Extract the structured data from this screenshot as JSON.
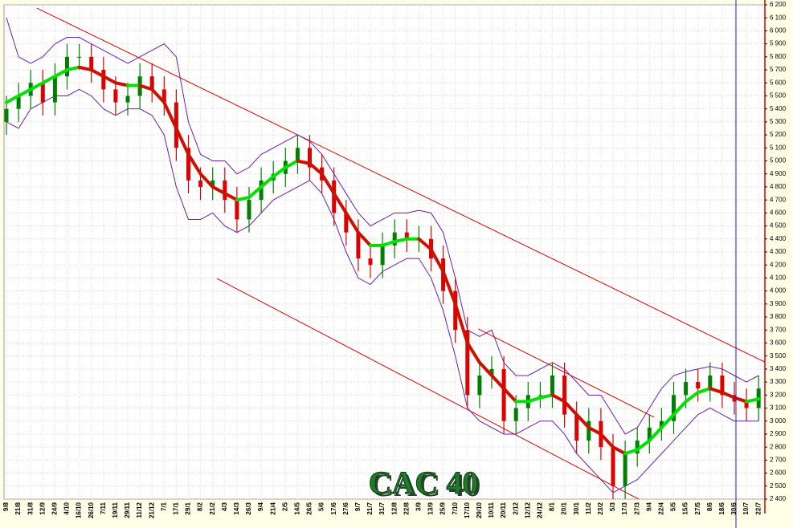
{
  "chart_data": {
    "type": "candlestick",
    "title": "CAC 40",
    "categories": [
      "9/8",
      "21/8",
      "31/8",
      "12/9",
      "24/9",
      "4/10",
      "16/10",
      "26/10",
      "7/11",
      "19/11",
      "29/11",
      "11/12",
      "21/12",
      "7/1",
      "17/1",
      "29/1",
      "8/2",
      "21/2",
      "4/3",
      "14/3",
      "26/3",
      "9/4",
      "21/4",
      "2/5",
      "14/5",
      "26/5",
      "5/6",
      "17/6",
      "27/6",
      "9/7",
      "21/7",
      "31/7",
      "12/8",
      "22/8",
      "3/9",
      "13/9",
      "25/9",
      "7/10",
      "17/10",
      "29/10",
      "10/11",
      "20/11",
      "2/12",
      "12/12",
      "24/12",
      "8/1",
      "20/1",
      "30/1",
      "11/2",
      "23/2",
      "5/3",
      "17/3",
      "27/3",
      "9/4",
      "22/4",
      "5/5",
      "15/5",
      "27/5",
      "8/6",
      "18/6",
      "30/6",
      "10/7",
      "22/7"
    ],
    "open": [
      5300,
      5400,
      5500,
      5600,
      5450,
      5650,
      5800,
      5800,
      5700,
      5550,
      5450,
      5500,
      5650,
      5550,
      5450,
      5100,
      4850,
      4800,
      4850,
      4700,
      4550,
      4700,
      4850,
      4900,
      5000,
      5100,
      4950,
      4850,
      4600,
      4450,
      4250,
      4200,
      4350,
      4450,
      4400,
      4400,
      4250,
      4000,
      3700,
      3200,
      3350,
      3400,
      3000,
      3100,
      3200,
      3200,
      3350,
      3050,
      2850,
      3000,
      2800,
      2500,
      2750,
      2850,
      2950,
      3000,
      3200,
      3300,
      3250,
      3350,
      3200,
      3150,
      3100
    ],
    "high": [
      5500,
      5600,
      5700,
      5700,
      5750,
      5900,
      5900,
      5900,
      5800,
      5650,
      5600,
      5750,
      5750,
      5650,
      5550,
      5200,
      4950,
      4950,
      4950,
      4800,
      4800,
      4950,
      5000,
      5100,
      5200,
      5200,
      5050,
      4950,
      4700,
      4550,
      4350,
      4450,
      4550,
      4550,
      4500,
      4500,
      4350,
      4100,
      3800,
      3450,
      3500,
      3500,
      3200,
      3300,
      3300,
      3450,
      3450,
      3150,
      3100,
      3100,
      2900,
      2850,
      2950,
      3050,
      3100,
      3300,
      3400,
      3400,
      3450,
      3450,
      3300,
      3250,
      3350
    ],
    "low": [
      5200,
      5300,
      5400,
      5350,
      5350,
      5550,
      5700,
      5600,
      5450,
      5350,
      5350,
      5400,
      5450,
      5350,
      5000,
      4750,
      4700,
      4700,
      4600,
      4450,
      4450,
      4600,
      4750,
      4800,
      4900,
      4850,
      4750,
      4500,
      4350,
      4150,
      4100,
      4100,
      4250,
      4300,
      4300,
      4150,
      3900,
      3600,
      3100,
      3100,
      3250,
      2900,
      2900,
      3000,
      3100,
      3100,
      2950,
      2750,
      2750,
      2700,
      2400,
      2400,
      2650,
      2750,
      2850,
      2900,
      3100,
      3150,
      3150,
      3100,
      3050,
      3000,
      3000
    ],
    "close": [
      5400,
      5500,
      5600,
      5450,
      5650,
      5800,
      5800,
      5700,
      5550,
      5450,
      5500,
      5650,
      5550,
      5450,
      5100,
      4850,
      4800,
      4850,
      4700,
      4550,
      4700,
      4850,
      4900,
      5000,
      5100,
      4950,
      4850,
      4600,
      4450,
      4250,
      4200,
      4350,
      4450,
      4400,
      4400,
      4250,
      4000,
      3700,
      3200,
      3350,
      3400,
      3000,
      3100,
      3200,
      3200,
      3350,
      3050,
      2850,
      3000,
      2800,
      2500,
      2750,
      2850,
      2950,
      3000,
      3200,
      3300,
      3250,
      3350,
      3200,
      3150,
      3100,
      3250
    ],
    "moving_average": [
      5450,
      5500,
      5550,
      5600,
      5650,
      5700,
      5720,
      5700,
      5650,
      5600,
      5580,
      5580,
      5550,
      5450,
      5250,
      5050,
      4900,
      4800,
      4750,
      4700,
      4720,
      4800,
      4880,
      4950,
      5000,
      4980,
      4900,
      4750,
      4600,
      4450,
      4350,
      4350,
      4380,
      4400,
      4400,
      4320,
      4150,
      3900,
      3600,
      3450,
      3350,
      3250,
      3150,
      3150,
      3180,
      3200,
      3150,
      3050,
      2950,
      2900,
      2800,
      2750,
      2780,
      2850,
      2950,
      3050,
      3150,
      3220,
      3250,
      3220,
      3180,
      3150,
      3170
    ],
    "band_upper": [
      6100,
      5800,
      5750,
      5800,
      5900,
      5950,
      5950,
      5900,
      5850,
      5800,
      5750,
      5800,
      5850,
      5900,
      5800,
      5300,
      5050,
      5000,
      5000,
      4900,
      4950,
      5050,
      5100,
      5150,
      5200,
      5150,
      5050,
      4900,
      4750,
      4600,
      4500,
      4550,
      4600,
      4600,
      4620,
      4600,
      4450,
      4100,
      3700,
      3650,
      3700,
      3450,
      3350,
      3350,
      3400,
      3450,
      3400,
      3300,
      3200,
      3200,
      3050,
      2900,
      2950,
      3100,
      3250,
      3350,
      3380,
      3400,
      3420,
      3400,
      3350,
      3300,
      3350
    ],
    "band_lower": [
      5300,
      5250,
      5400,
      5450,
      5500,
      5500,
      5550,
      5500,
      5400,
      5350,
      5400,
      5400,
      5350,
      5200,
      4800,
      4550,
      4550,
      4600,
      4500,
      4450,
      4500,
      4600,
      4700,
      4750,
      4800,
      4850,
      4750,
      4550,
      4300,
      4100,
      4050,
      4150,
      4200,
      4250,
      4250,
      4100,
      3850,
      3500,
      3100,
      3000,
      2950,
      2900,
      2900,
      2950,
      3000,
      3000,
      2900,
      2750,
      2650,
      2550,
      2450,
      2500,
      2550,
      2650,
      2750,
      2850,
      2950,
      3050,
      3100,
      3050,
      3000,
      3000,
      3000
    ],
    "trendlines": [
      {
        "start": [
          2.5,
          6175
        ],
        "end": [
          64.8,
          3350
        ]
      },
      {
        "start": [
          17.35,
          4096
        ],
        "end": [
          52.5,
          2381
        ]
      },
      {
        "start": [
          38.9,
          3708
        ],
        "end": [
          53.4,
          3029
        ]
      }
    ],
    "up_color": "#008000",
    "down_color": "#e00000",
    "band_color": "#6a1fa8",
    "trend_color": "#e00000",
    "ma_up_color": "#00e000",
    "ma_down_color": "#cc1100",
    "ylim": [
      2400,
      6200
    ],
    "y_axis_side": "right",
    "grid": true,
    "yticks": [
      {
        "value": 2400,
        "label": "2 400"
      },
      {
        "value": 2500,
        "label": "2 500"
      },
      {
        "value": 2600,
        "label": "2 600"
      },
      {
        "value": 2700,
        "label": "2 700"
      },
      {
        "value": 2800,
        "label": "2 800"
      },
      {
        "value": 2900,
        "label": "2 900"
      },
      {
        "value": 3000,
        "label": "3 000"
      },
      {
        "value": 3100,
        "label": "3 100"
      },
      {
        "value": 3200,
        "label": "3 200"
      },
      {
        "value": 3300,
        "label": "3 300"
      },
      {
        "value": 3400,
        "label": "3 400"
      },
      {
        "value": 3500,
        "label": "3 500"
      },
      {
        "value": 3600,
        "label": "3 600"
      },
      {
        "value": 3700,
        "label": "3 700"
      },
      {
        "value": 3800,
        "label": "3 800"
      },
      {
        "value": 3900,
        "label": "3 900"
      },
      {
        "value": 4000,
        "label": "4 000"
      },
      {
        "value": 4100,
        "label": "4 100"
      },
      {
        "value": 4200,
        "label": "4 200"
      },
      {
        "value": 4300,
        "label": "4 300"
      },
      {
        "value": 4400,
        "label": "4 400"
      },
      {
        "value": 4500,
        "label": "4 500"
      },
      {
        "value": 4600,
        "label": "4 600"
      },
      {
        "value": 4700,
        "label": "4 700"
      },
      {
        "value": 4800,
        "label": "4 800"
      },
      {
        "value": 4900,
        "label": "4 900"
      },
      {
        "value": 5000,
        "label": "5 000"
      },
      {
        "value": 5100,
        "label": "5 100"
      },
      {
        "value": 5200,
        "label": "5 200"
      },
      {
        "value": 5300,
        "label": "5 300"
      },
      {
        "value": 5400,
        "label": "5 400"
      },
      {
        "value": 5500,
        "label": "5 500"
      },
      {
        "value": 5600,
        "label": "5 600"
      },
      {
        "value": 5700,
        "label": "5 700"
      },
      {
        "value": 5800,
        "label": "5 800"
      },
      {
        "value": 5900,
        "label": "5 900"
      },
      {
        "value": 6000,
        "label": "6 000"
      },
      {
        "value": 6100,
        "label": "6 100"
      },
      {
        "value": 6200,
        "label": "6 200"
      }
    ]
  }
}
